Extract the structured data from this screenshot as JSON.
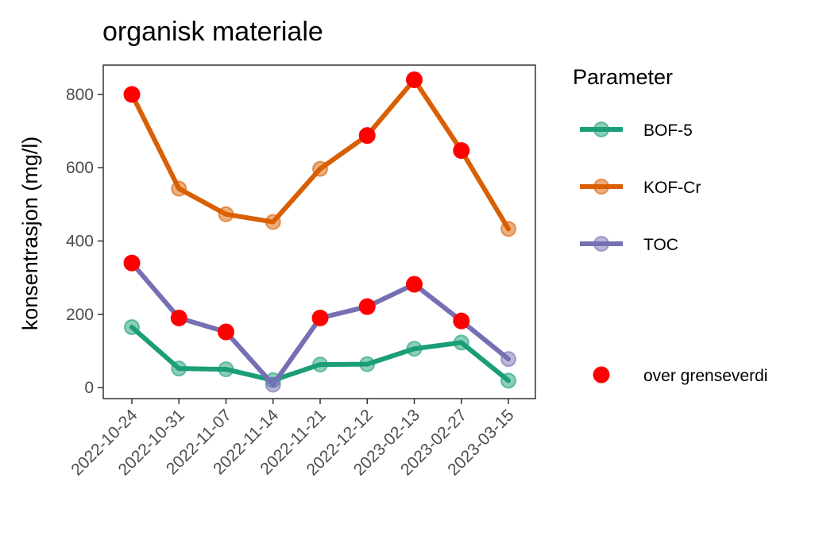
{
  "chart_data": {
    "type": "line",
    "title": "organisk materiale",
    "xlabel": "",
    "ylabel": "konsentrasjon (mg/l)",
    "ylim": [
      -30,
      880
    ],
    "yticks": [
      0,
      200,
      400,
      600,
      800
    ],
    "categories": [
      "2022-10-24",
      "2022-10-31",
      "2022-11-07",
      "2022-11-14",
      "2022-11-21",
      "2022-12-12",
      "2023-02-13",
      "2023-02-27",
      "2023-03-15"
    ],
    "grid": false,
    "legend_position": "right",
    "legend_title": "Parameter",
    "exceed_label": "over grenseverdi",
    "exceed_color": "#ff0000",
    "series": [
      {
        "name": "BOF-5",
        "color": "#1b9e77",
        "values": [
          165,
          52,
          50,
          20,
          63,
          64,
          106,
          123,
          19
        ],
        "exceed": [
          false,
          false,
          false,
          false,
          false,
          false,
          false,
          false,
          false
        ]
      },
      {
        "name": "KOF-Cr",
        "color": "#d95f02",
        "values": [
          800,
          543,
          473,
          452,
          597,
          688,
          840,
          647,
          433
        ],
        "exceed": [
          true,
          false,
          false,
          false,
          false,
          true,
          true,
          true,
          false
        ]
      },
      {
        "name": "TOC",
        "color": "#7570b3",
        "values": [
          340,
          190,
          152,
          8,
          190,
          221,
          282,
          182,
          78
        ],
        "exceed": [
          true,
          true,
          true,
          false,
          true,
          true,
          true,
          true,
          false
        ]
      }
    ]
  }
}
